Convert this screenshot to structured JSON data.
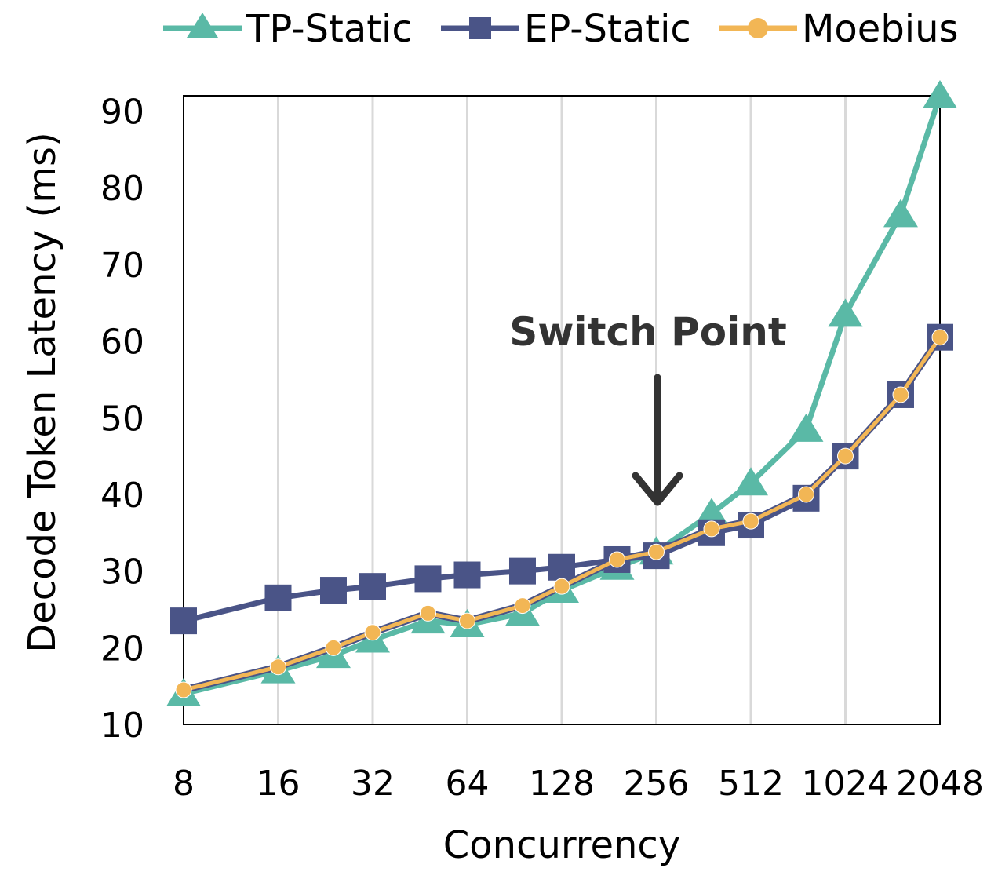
{
  "chart_data": {
    "type": "line",
    "xlabel": "Concurrency",
    "ylabel": "Decode Token Latency (ms)",
    "ylim": [
      10,
      92
    ],
    "yticks": [
      10,
      20,
      30,
      40,
      50,
      60,
      70,
      80,
      90
    ],
    "x_scale": "log2",
    "x": [
      8,
      16,
      24,
      32,
      48,
      64,
      96,
      128,
      192,
      256,
      384,
      512,
      768,
      1024,
      1536,
      2048
    ],
    "xticks": [
      "8",
      "16",
      "32",
      "64",
      "128",
      "256",
      "512",
      "1024",
      "2048"
    ],
    "grid": "vertical",
    "legend": "top",
    "series": [
      {
        "name": "TP-Static",
        "color": "#5ab9a6",
        "marker": "triangle",
        "values": [
          14,
          17,
          19,
          21,
          23.5,
          23,
          24.5,
          27.5,
          30.5,
          32.5,
          37.5,
          41.5,
          48.5,
          63.5,
          76.5,
          92
        ]
      },
      {
        "name": "EP-Static",
        "color": "#4a5487",
        "marker": "square",
        "values": [
          23.5,
          26.5,
          27.5,
          28,
          29,
          29.5,
          30,
          30.5,
          31.5,
          32,
          35,
          36,
          39.5,
          45,
          53,
          60.5
        ]
      },
      {
        "name": "Moebius",
        "color": "#f2b655",
        "marker": "circle",
        "values": [
          14.5,
          17.5,
          20,
          22,
          24.5,
          23.5,
          25.5,
          28,
          31.5,
          32.5,
          35.5,
          36.5,
          40,
          45,
          53,
          60.5
        ]
      }
    ],
    "annotations": [
      {
        "text": "Switch Point",
        "x": 256,
        "arrow": "down"
      }
    ]
  }
}
